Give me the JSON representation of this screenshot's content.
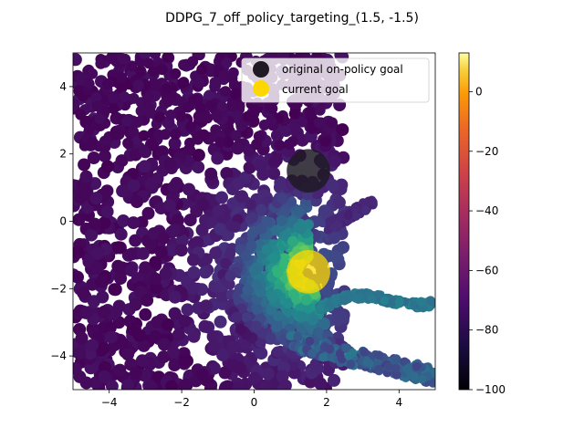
{
  "chart_data": {
    "type": "scatter",
    "title": "DDPG_7_off_policy_targeting_(1.5, -1.5)",
    "xlabel": "",
    "ylabel": "",
    "xlim": [
      -5,
      5
    ],
    "ylim": [
      -5,
      5
    ],
    "x_ticks": [
      -4,
      -2,
      0,
      2,
      4
    ],
    "y_ticks": [
      -4,
      -2,
      0,
      2,
      4
    ],
    "grid": false,
    "legend_position": "top-right",
    "legend": [
      {
        "label": "original on-policy goal",
        "color": "#1f1a24"
      },
      {
        "label": "current goal",
        "color": "#ffd700"
      }
    ],
    "markers": [
      {
        "name": "original on-policy goal",
        "x": 1.5,
        "y": 1.5,
        "color": "#1f1a24"
      },
      {
        "name": "current goal",
        "x": 1.5,
        "y": -1.5,
        "color": "#ffd700"
      }
    ],
    "colorbar": {
      "colormap": "viridis (points) / inferno (colorbar)",
      "range": [
        -100,
        13
      ],
      "ticks": [
        0,
        -20,
        -40,
        -60,
        -80,
        -100
      ]
    },
    "point_color_value_range": [
      -80,
      10
    ],
    "colors": {
      "background_fill": "#46327e",
      "high_value": "#fde725",
      "mid_value": "#21918c",
      "low_value": "#440154"
    }
  }
}
